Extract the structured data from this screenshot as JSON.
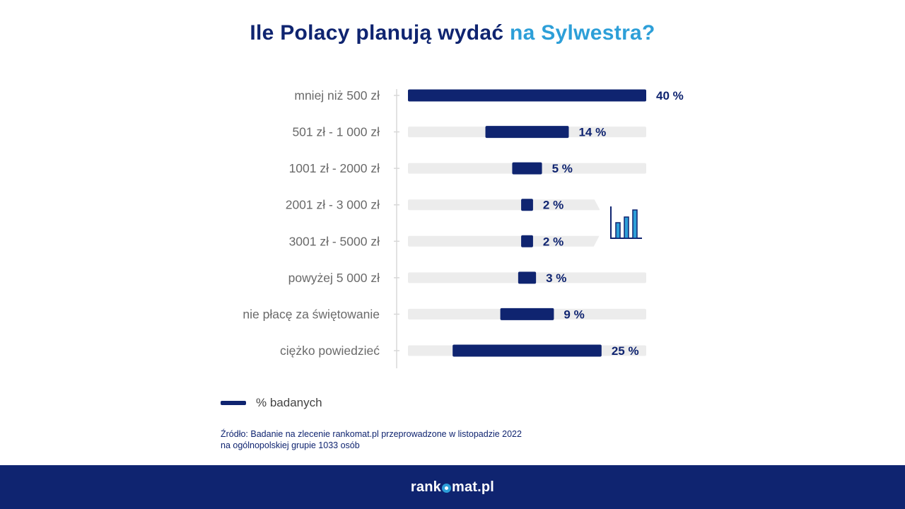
{
  "colors": {
    "navy": "#0f2470",
    "accent": "#2d9fd8",
    "track": "#ececec",
    "axis": "#d8d8d8",
    "label": "#6a6a6a"
  },
  "title": {
    "part1": "Ile Polacy planują wydać ",
    "part2": "na Sylwestra?"
  },
  "chart_data": {
    "type": "bar",
    "orientation": "horizontal",
    "categories": [
      "mniej niż 500 zł",
      "501 zł - 1 000 zł",
      "1001 zł - 2000 zł",
      "2001 zł - 3 000 zł",
      "3001 zł - 5000 zł",
      "powyżej 5 000 zł",
      "nie płacę za świętowanie",
      "ciężko powiedzieć"
    ],
    "series": [
      {
        "name": "% badanych",
        "values": [
          40,
          14,
          5,
          2,
          2,
          3,
          9,
          25
        ]
      }
    ],
    "value_labels": [
      "40 %",
      "14 %",
      "5 %",
      "2 %",
      "2 %",
      "3 %",
      "9 %",
      "25 %"
    ],
    "xlim": [
      0,
      40
    ],
    "bar_alignment": "centered",
    "legend": "bottom-left",
    "decorative_icon": "bar-chart-icon"
  },
  "legend": {
    "label": "% badanych"
  },
  "source": {
    "line1": "Źródło: Badanie na zlecenie rankomat.pl przeprowadzone w listopadzie 2022",
    "line2": "na ogólnopolskiej grupie 1033 osób"
  },
  "footer": {
    "brand_part1": "rank",
    "brand_part2": "mat.pl"
  }
}
